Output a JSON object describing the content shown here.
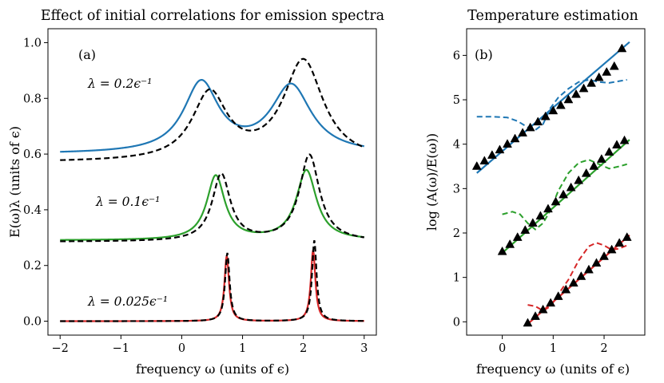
{
  "chart_data": [
    {
      "type": "line",
      "panel_label": "(a)",
      "title": "Effect of initial correlations for emission spectra",
      "xlabel": "frequency ω (units of ϵ)",
      "ylabel": "E(ω)λ (units of ϵ)",
      "xlim": [
        -2.2,
        3.2
      ],
      "ylim": [
        -0.05,
        1.05
      ],
      "xticks": [
        -2,
        -1,
        0,
        1,
        2,
        3
      ],
      "yticks": [
        0.0,
        0.2,
        0.4,
        0.6,
        0.8,
        1.0
      ],
      "xtick_labels": [
        "−2",
        "−1",
        "0",
        "1",
        "2",
        "3"
      ],
      "ytick_labels": [
        "0.0",
        "0.2",
        "0.4",
        "0.6",
        "0.8",
        "1.0"
      ],
      "annotations": [
        "λ = 0.2ϵ⁻¹",
        "λ = 0.1ϵ⁻¹",
        "λ = 0.025ϵ⁻¹"
      ],
      "grid": false,
      "series": [
        {
          "name": "λ = 0.2 (solid)",
          "color": "#1f77b4",
          "style": "solid",
          "offset": 0.6,
          "peaks": [
            {
              "center": 0.32,
              "width": 0.35,
              "height": 0.25
            },
            {
              "center": 1.8,
              "width": 0.4,
              "height": 0.24
            }
          ]
        },
        {
          "name": "λ = 0.2 (dashed)",
          "color": "#000000",
          "style": "dashed",
          "offset": 0.57,
          "peaks": [
            {
              "center": 0.46,
              "width": 0.35,
              "height": 0.24
            },
            {
              "center": 2.0,
              "width": 0.4,
              "height": 0.36
            }
          ]
        },
        {
          "name": "λ = 0.1 (solid)",
          "color": "#2ca02c",
          "style": "solid",
          "offset": 0.29,
          "peaks": [
            {
              "center": 0.56,
              "width": 0.18,
              "height": 0.23
            },
            {
              "center": 2.05,
              "width": 0.2,
              "height": 0.25
            }
          ]
        },
        {
          "name": "λ = 0.1 (dashed)",
          "color": "#000000",
          "style": "dashed",
          "offset": 0.285,
          "peaks": [
            {
              "center": 0.65,
              "width": 0.18,
              "height": 0.24
            },
            {
              "center": 2.1,
              "width": 0.2,
              "height": 0.31
            }
          ]
        },
        {
          "name": "λ = 0.025 (solid)",
          "color": "#d62728",
          "style": "solid",
          "offset": 0.0,
          "peaks": [
            {
              "center": 0.74,
              "width": 0.045,
              "height": 0.235
            },
            {
              "center": 2.16,
              "width": 0.045,
              "height": 0.255
            }
          ]
        },
        {
          "name": "λ = 0.025 (dashed)",
          "color": "#000000",
          "style": "dashed",
          "offset": 0.0,
          "peaks": [
            {
              "center": 0.75,
              "width": 0.045,
              "height": 0.245
            },
            {
              "center": 2.18,
              "width": 0.045,
              "height": 0.29
            }
          ]
        }
      ]
    },
    {
      "type": "line",
      "panel_label": "(b)",
      "title": "Temperature estimation",
      "xlabel": "frequency ω (units of ϵ)",
      "ylabel": "log (A(ω)/E(ω))",
      "xlim": [
        -0.7,
        2.8
      ],
      "ylim": [
        -0.3,
        6.6
      ],
      "xticks": [
        0,
        1,
        2
      ],
      "yticks": [
        0,
        1,
        2,
        3,
        4,
        5,
        6
      ],
      "xtick_labels": [
        "0",
        "1",
        "2"
      ],
      "ytick_labels": [
        "0",
        "1",
        "2",
        "3",
        "4",
        "5",
        "6"
      ],
      "grid": false,
      "fit_lines": [
        {
          "color": "#1f77b4",
          "x": [
            -0.5,
            2.5
          ],
          "y": [
            3.35,
            6.3
          ]
        },
        {
          "color": "#2ca02c",
          "x": [
            0.0,
            2.5
          ],
          "y": [
            1.55,
            4.1
          ]
        },
        {
          "color": "#d62728",
          "x": [
            0.5,
            2.5
          ],
          "y": [
            -0.05,
            1.95
          ]
        }
      ],
      "markers": [
        {
          "color": "#1f77b4",
          "x": [
            -0.5,
            -0.35,
            -0.2,
            -0.05,
            0.1,
            0.25,
            0.4,
            0.55,
            0.7,
            0.85,
            1.0,
            1.15,
            1.3,
            1.45,
            1.6,
            1.75,
            1.9,
            2.05,
            2.2,
            2.35
          ],
          "y": [
            3.5,
            3.62,
            3.75,
            3.87,
            4.0,
            4.12,
            4.25,
            4.37,
            4.5,
            4.62,
            4.75,
            4.87,
            5.0,
            5.12,
            5.25,
            5.37,
            5.5,
            5.62,
            5.75,
            6.15
          ]
        },
        {
          "color": "#2ca02c",
          "x": [
            0.0,
            0.15,
            0.3,
            0.45,
            0.6,
            0.75,
            0.9,
            1.05,
            1.2,
            1.35,
            1.5,
            1.65,
            1.8,
            1.95,
            2.1,
            2.25,
            2.4
          ],
          "y": [
            1.58,
            1.74,
            1.9,
            2.06,
            2.22,
            2.38,
            2.54,
            2.7,
            2.86,
            3.02,
            3.18,
            3.34,
            3.5,
            3.66,
            3.82,
            3.98,
            4.08
          ]
        },
        {
          "color": "#d62728",
          "x": [
            0.5,
            0.65,
            0.8,
            0.95,
            1.1,
            1.25,
            1.4,
            1.55,
            1.7,
            1.85,
            2.0,
            2.15,
            2.3,
            2.45
          ],
          "y": [
            -0.03,
            0.12,
            0.27,
            0.42,
            0.57,
            0.72,
            0.87,
            1.02,
            1.17,
            1.32,
            1.47,
            1.62,
            1.77,
            1.9
          ]
        }
      ],
      "dashed_curves": [
        {
          "color": "#1f77b4",
          "x": [
            -0.5,
            -0.2,
            0.1,
            0.3,
            0.5,
            0.65,
            0.8,
            0.95,
            1.1,
            1.3,
            1.5,
            1.7,
            1.9,
            2.1,
            2.3,
            2.45
          ],
          "y": [
            4.62,
            4.62,
            4.6,
            4.52,
            4.38,
            4.32,
            4.45,
            4.82,
            5.05,
            5.25,
            5.4,
            5.45,
            5.4,
            5.38,
            5.42,
            5.45
          ]
        },
        {
          "color": "#2ca02c",
          "x": [
            0.0,
            0.2,
            0.35,
            0.5,
            0.65,
            0.8,
            0.95,
            1.1,
            1.3,
            1.5,
            1.7,
            1.9,
            2.1,
            2.3,
            2.45
          ],
          "y": [
            2.42,
            2.48,
            2.42,
            2.22,
            2.08,
            2.22,
            2.52,
            2.95,
            3.35,
            3.58,
            3.65,
            3.55,
            3.45,
            3.5,
            3.55
          ]
        },
        {
          "color": "#d62728",
          "x": [
            0.5,
            0.65,
            0.8,
            0.95,
            1.1,
            1.3,
            1.5,
            1.7,
            1.85,
            2.0,
            2.15,
            2.3,
            2.45
          ],
          "y": [
            0.38,
            0.35,
            0.25,
            0.35,
            0.62,
            0.95,
            1.38,
            1.7,
            1.78,
            1.72,
            1.62,
            1.65,
            1.72
          ]
        }
      ]
    }
  ]
}
